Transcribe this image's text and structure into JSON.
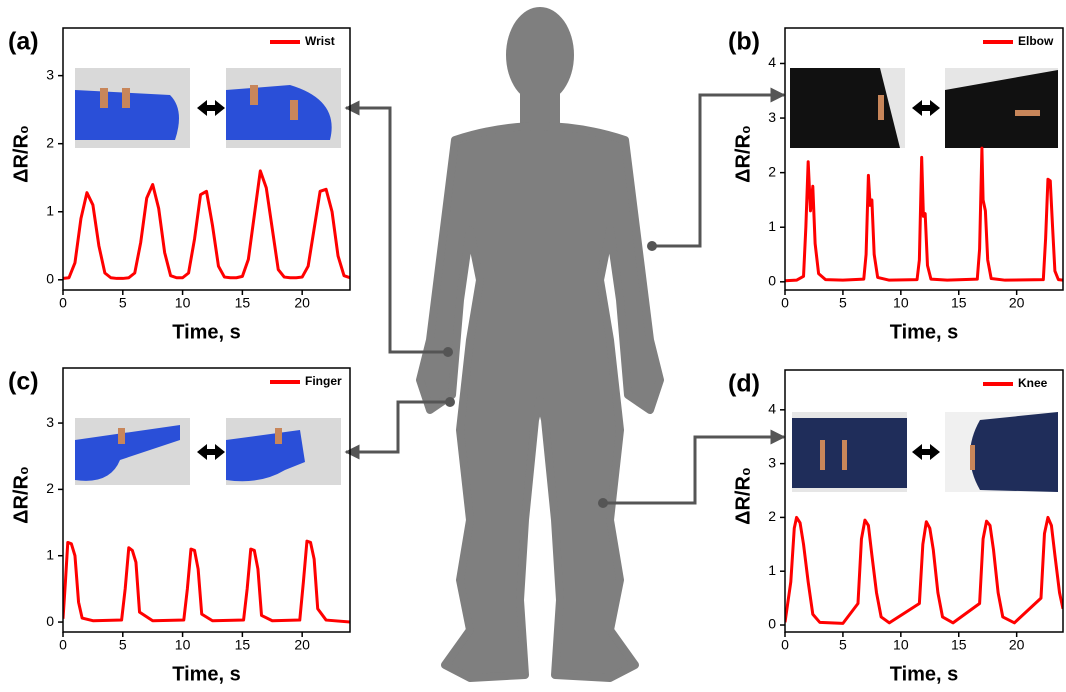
{
  "chart_data": [
    {
      "type": "line",
      "panel_label": "(a)",
      "x_label": "Time, s",
      "y_label": "ΔR/R₀",
      "xlim": [
        0,
        24
      ],
      "xticks": [
        0,
        5,
        10,
        15,
        20
      ],
      "ylim": [
        -0.15,
        3.7
      ],
      "yticks": [
        0,
        1,
        2,
        3
      ],
      "x": [
        0,
        0.5,
        1,
        1.5,
        2,
        2.5,
        3,
        3.5,
        4,
        4.5,
        5,
        5.5,
        6,
        6.5,
        7,
        7.5,
        8,
        8.5,
        9,
        9.5,
        10,
        10.5,
        11,
        11.5,
        12,
        12.5,
        13,
        13.5,
        14,
        14.5,
        15,
        15.5,
        16,
        16.5,
        17,
        17.5,
        18,
        18.5,
        19,
        19.5,
        20,
        20.5,
        21,
        21.5,
        22,
        22.5,
        23,
        23.5,
        24
      ],
      "series": [
        {
          "name": "Wrist",
          "color": "#ff0000",
          "values": [
            0.02,
            0.03,
            0.25,
            0.9,
            1.28,
            1.1,
            0.5,
            0.1,
            0.03,
            0.02,
            0.02,
            0.03,
            0.1,
            0.55,
            1.2,
            1.4,
            1.05,
            0.4,
            0.06,
            0.03,
            0.03,
            0.1,
            0.6,
            1.25,
            1.3,
            0.8,
            0.2,
            0.04,
            0.03,
            0.03,
            0.05,
            0.3,
            0.95,
            1.6,
            1.35,
            0.75,
            0.15,
            0.04,
            0.03,
            0.03,
            0.04,
            0.2,
            0.75,
            1.3,
            1.33,
            1.0,
            0.35,
            0.06,
            0.03
          ]
        }
      ]
    },
    {
      "type": "line",
      "panel_label": "(b)",
      "x_label": "Time, s",
      "y_label": "ΔR/R₀",
      "xlim": [
        0,
        24
      ],
      "xticks": [
        0,
        5,
        10,
        15,
        20
      ],
      "ylim": [
        -0.15,
        4.65
      ],
      "yticks": [
        0,
        1,
        2,
        3,
        4
      ],
      "x": [
        0,
        1,
        1.6,
        1.8,
        2.0,
        2.2,
        2.4,
        2.6,
        2.9,
        3.5,
        5,
        6.8,
        7.0,
        7.2,
        7.35,
        7.5,
        7.7,
        8.0,
        9,
        11.4,
        11.6,
        11.8,
        11.95,
        12.1,
        12.3,
        12.6,
        14,
        16.6,
        16.8,
        17.0,
        17.1,
        17.3,
        17.5,
        17.8,
        19,
        22.3,
        22.5,
        22.7,
        22.9,
        23.1,
        23.3,
        23.6,
        24
      ],
      "series": [
        {
          "name": "Elbow",
          "color": "#ff0000",
          "values": [
            0.02,
            0.03,
            0.1,
            1.0,
            2.2,
            1.3,
            1.75,
            0.7,
            0.15,
            0.04,
            0.03,
            0.05,
            0.5,
            1.95,
            1.4,
            1.5,
            0.5,
            0.08,
            0.03,
            0.04,
            0.4,
            2.28,
            1.2,
            1.25,
            0.3,
            0.05,
            0.03,
            0.05,
            0.6,
            2.45,
            1.5,
            1.3,
            0.4,
            0.06,
            0.03,
            0.04,
            0.8,
            1.88,
            1.85,
            1.0,
            0.2,
            0.04,
            0.03
          ]
        }
      ]
    },
    {
      "type": "line",
      "panel_label": "(c)",
      "x_label": "Time, s",
      "y_label": "ΔR/R₀",
      "xlim": [
        0,
        24
      ],
      "xticks": [
        0,
        5,
        10,
        15,
        20
      ],
      "ylim": [
        -0.15,
        3.83
      ],
      "yticks": [
        0,
        1,
        2,
        3
      ],
      "x": [
        0,
        0.2,
        0.4,
        0.7,
        1.0,
        1.3,
        1.6,
        2.5,
        4.9,
        5.2,
        5.5,
        5.8,
        6.1,
        6.4,
        7.5,
        10.1,
        10.4,
        10.7,
        11.0,
        11.3,
        11.6,
        12.5,
        15.1,
        15.4,
        15.7,
        16.0,
        16.3,
        16.6,
        17.5,
        19.8,
        20.1,
        20.4,
        20.7,
        21.0,
        21.3,
        22,
        24
      ],
      "series": [
        {
          "name": "Finger",
          "color": "#ff0000",
          "values": [
            0.05,
            0.6,
            1.2,
            1.18,
            1.0,
            0.3,
            0.06,
            0.02,
            0.03,
            0.5,
            1.12,
            1.08,
            0.9,
            0.15,
            0.02,
            0.03,
            0.5,
            1.1,
            1.08,
            0.8,
            0.12,
            0.02,
            0.03,
            0.5,
            1.1,
            1.08,
            0.8,
            0.1,
            0.02,
            0.03,
            0.6,
            1.22,
            1.2,
            0.95,
            0.2,
            0.03,
            0.0
          ]
        }
      ]
    },
    {
      "type": "line",
      "panel_label": "(d)",
      "x_label": "Time, s",
      "y_label": "ΔR/R₀",
      "xlim": [
        0,
        24
      ],
      "xticks": [
        0,
        5,
        10,
        15,
        20
      ],
      "ylim": [
        -0.13,
        4.74
      ],
      "yticks": [
        0,
        1,
        2,
        3,
        4
      ],
      "x": [
        0,
        0.5,
        0.8,
        1.0,
        1.3,
        1.6,
        2.0,
        2.4,
        3,
        5,
        6.3,
        6.6,
        6.9,
        7.2,
        7.5,
        7.9,
        8.3,
        9,
        11.6,
        11.9,
        12.2,
        12.5,
        12.8,
        13.2,
        13.6,
        14.5,
        16.8,
        17.1,
        17.4,
        17.7,
        18.0,
        18.4,
        18.8,
        19.8,
        22.1,
        22.4,
        22.7,
        23.0,
        23.3,
        23.7,
        24
      ],
      "series": [
        {
          "name": "Knee",
          "color": "#ff0000",
          "values": [
            0.05,
            0.8,
            1.8,
            2.0,
            1.9,
            1.5,
            0.8,
            0.2,
            0.05,
            0.03,
            0.4,
            1.6,
            1.95,
            1.85,
            1.3,
            0.6,
            0.15,
            0.04,
            0.4,
            1.5,
            1.92,
            1.8,
            1.4,
            0.6,
            0.15,
            0.04,
            0.4,
            1.6,
            1.93,
            1.85,
            1.4,
            0.6,
            0.15,
            0.04,
            0.5,
            1.7,
            2.0,
            1.85,
            1.3,
            0.6,
            0.3
          ]
        }
      ]
    }
  ]
}
